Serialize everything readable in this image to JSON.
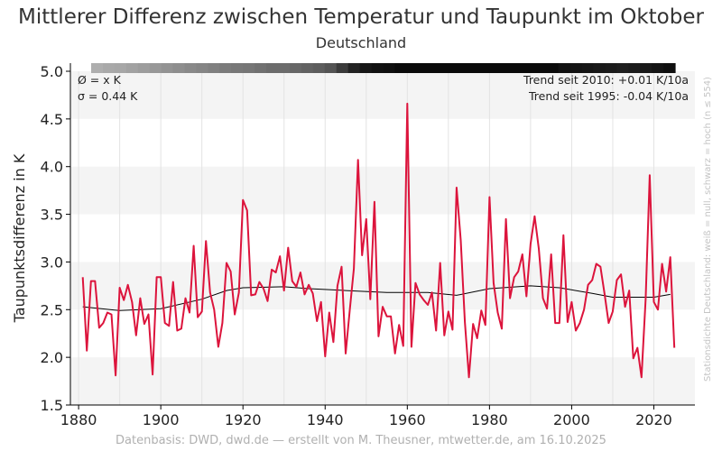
{
  "colors": {
    "series": "#dc143c",
    "smooth": "#000000",
    "band": "#f4f4f4"
  },
  "chart_data": {
    "type": "line",
    "title": "Mittlerer Differenz zwischen Temperatur und Taupunkt im Oktober",
    "subtitle": "Deutschland",
    "ylabel": "Taupunktsdifferenz in K",
    "xlabel": "",
    "xlim": [
      1878,
      2030
    ],
    "ylim": [
      1.5,
      5.0
    ],
    "xticks": [
      1880,
      1900,
      1920,
      1940,
      1960,
      1980,
      2000,
      2020
    ],
    "yticks": [
      1.5,
      2.0,
      2.5,
      3.0,
      3.5,
      4.0,
      4.5,
      5.0
    ],
    "ytick_labels": [
      "1.5",
      "2.0",
      "2.5",
      "3.0",
      "3.5",
      "4.0",
      "4.5",
      "5.0"
    ],
    "annotation_left": [
      "Ø = x K",
      "σ = 0.44 K"
    ],
    "annotation_right": [
      "Trend seit 2010: +0.01 K/10a",
      "Trend seit 1995: -0.04 K/10a"
    ],
    "side_label": "Stationsdichte Deutschland: weiß = null, schwarz = hoch (n ≤ 554)",
    "footer": "Datenbasis: DWD, dwd.de — erstellt von M. Theusner, mtwetter.de, am 16.10.2025",
    "series": [
      {
        "name": "Oktober",
        "x_start": 1881,
        "values": [
          2.84,
          2.07,
          2.8,
          2.8,
          2.31,
          2.36,
          2.47,
          2.45,
          1.81,
          2.73,
          2.6,
          2.76,
          2.58,
          2.23,
          2.62,
          2.35,
          2.45,
          1.82,
          2.84,
          2.84,
          2.36,
          2.33,
          2.79,
          2.28,
          2.3,
          2.62,
          2.47,
          3.17,
          2.42,
          2.48,
          3.22,
          2.68,
          2.5,
          2.11,
          2.36,
          2.99,
          2.9,
          2.45,
          2.68,
          3.65,
          3.54,
          2.65,
          2.66,
          2.79,
          2.72,
          2.59,
          2.92,
          2.89,
          3.06,
          2.7,
          3.15,
          2.8,
          2.74,
          2.89,
          2.66,
          2.76,
          2.67,
          2.38,
          2.58,
          2.01,
          2.47,
          2.16,
          2.75,
          2.95,
          2.04,
          2.5,
          2.93,
          4.07,
          3.07,
          3.45,
          2.61,
          3.63,
          2.22,
          2.53,
          2.43,
          2.43,
          2.04,
          2.34,
          2.12,
          4.66,
          2.11,
          2.78,
          2.66,
          2.6,
          2.55,
          2.68,
          2.28,
          2.99,
          2.23,
          2.48,
          2.29,
          3.78,
          3.23,
          2.37,
          1.79,
          2.35,
          2.2,
          2.49,
          2.34,
          3.68,
          2.78,
          2.47,
          2.3,
          3.45,
          2.62,
          2.84,
          2.9,
          3.08,
          2.64,
          3.19,
          3.48,
          3.14,
          2.62,
          2.51,
          3.08,
          2.36,
          2.36,
          3.28,
          2.37,
          2.58,
          2.28,
          2.36,
          2.5,
          2.76,
          2.81,
          2.98,
          2.95,
          2.67,
          2.36,
          2.48,
          2.81,
          2.87,
          2.53,
          2.7,
          1.99,
          2.1,
          1.79,
          2.61,
          3.91,
          2.58,
          2.5,
          2.98,
          2.69,
          3.05,
          2.1
        ]
      },
      {
        "name": "Glättung",
        "points": [
          [
            1881,
            2.53
          ],
          [
            1890,
            2.49
          ],
          [
            1900,
            2.51
          ],
          [
            1910,
            2.61
          ],
          [
            1916,
            2.7
          ],
          [
            1920,
            2.73
          ],
          [
            1930,
            2.74
          ],
          [
            1936,
            2.72
          ],
          [
            1945,
            2.7
          ],
          [
            1955,
            2.68
          ],
          [
            1965,
            2.68
          ],
          [
            1972,
            2.65
          ],
          [
            1980,
            2.72
          ],
          [
            1990,
            2.75
          ],
          [
            1997,
            2.73
          ],
          [
            2005,
            2.67
          ],
          [
            2010,
            2.63
          ],
          [
            2020,
            2.63
          ],
          [
            2024,
            2.66
          ]
        ]
      }
    ],
    "station_density": [
      0.33,
      0.35,
      0.36,
      0.38,
      0.4,
      0.42,
      0.44,
      0.46,
      0.48,
      0.5,
      0.52,
      0.54,
      0.55,
      0.56,
      0.58,
      0.6,
      0.6,
      0.62,
      0.64,
      0.66,
      0.7,
      0.8,
      0.9,
      0.95,
      0.97,
      0.98,
      1.0,
      1.0,
      1.0,
      1.0,
      1.0,
      1.0,
      1.0,
      1.0,
      1.0,
      1.0,
      1.0,
      1.0,
      1.0,
      1.0,
      0.97,
      0.96,
      0.95,
      0.94,
      0.93,
      0.92,
      0.93,
      0.94,
      0.96,
      0.98
    ]
  }
}
